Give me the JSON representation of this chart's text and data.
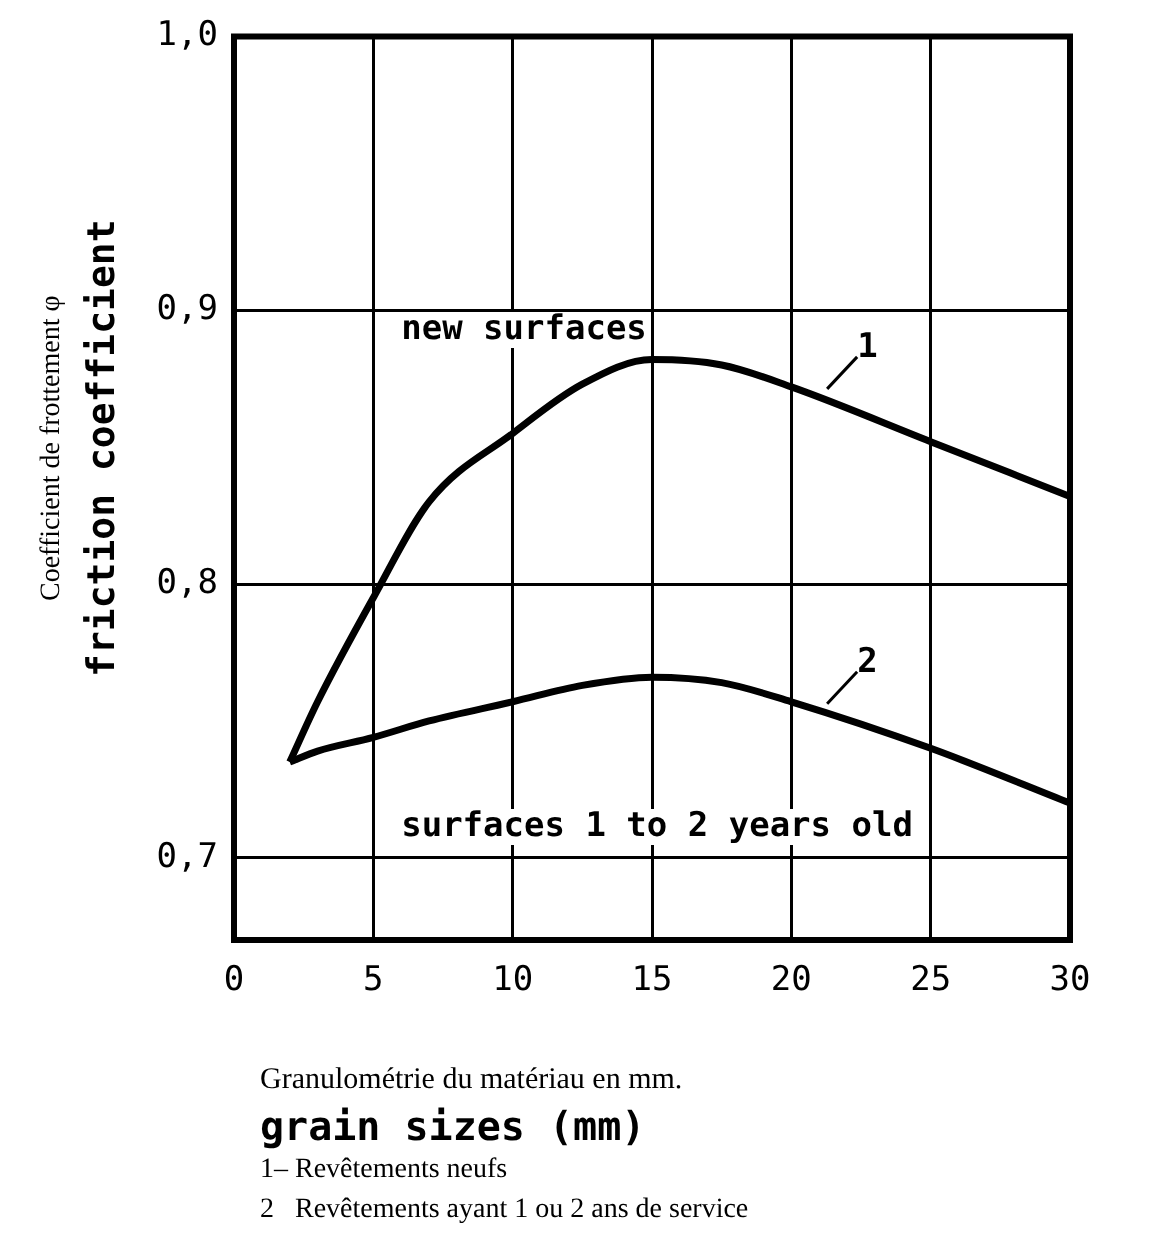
{
  "chart_data": {
    "type": "line",
    "ylabel": "friction coefficient",
    "xlabel": "grain sizes (mm)",
    "x": [
      2,
      3,
      5,
      7,
      10,
      12.5,
      15,
      17.5,
      20,
      25,
      30
    ],
    "series": [
      {
        "name": "1",
        "color": "#000000",
        "values": [
          0.735,
          0.757,
          0.795,
          0.83,
          0.855,
          0.873,
          0.882,
          0.88,
          0.872,
          0.852,
          0.832
        ]
      },
      {
        "name": "2",
        "color": "#000000",
        "values": [
          0.735,
          0.739,
          0.744,
          0.75,
          0.757,
          0.763,
          0.766,
          0.764,
          0.757,
          0.74,
          0.72
        ]
      }
    ],
    "xlim": [
      0,
      30
    ],
    "xticks": [
      0,
      5,
      10,
      15,
      20,
      25,
      30
    ],
    "ylim": [
      0.67,
      1.0
    ],
    "yticks": [
      {
        "value": 0.7,
        "label": "0,7"
      },
      {
        "value": 0.8,
        "label": "0,8"
      },
      {
        "value": 0.9,
        "label": "0,9"
      },
      {
        "value": 1.0,
        "label": "1,0"
      }
    ],
    "grid": true,
    "marker": "none",
    "line_style": "solid",
    "annotations": [
      "new surfaces",
      "surfaces 1 to 2 years old",
      "Coefficient de frottement φ",
      "Granulométrie du matériau en mm.",
      "1– Revêtements neufs",
      "2   Revêtements ayant 1 ou 2 ans de service"
    ]
  }
}
